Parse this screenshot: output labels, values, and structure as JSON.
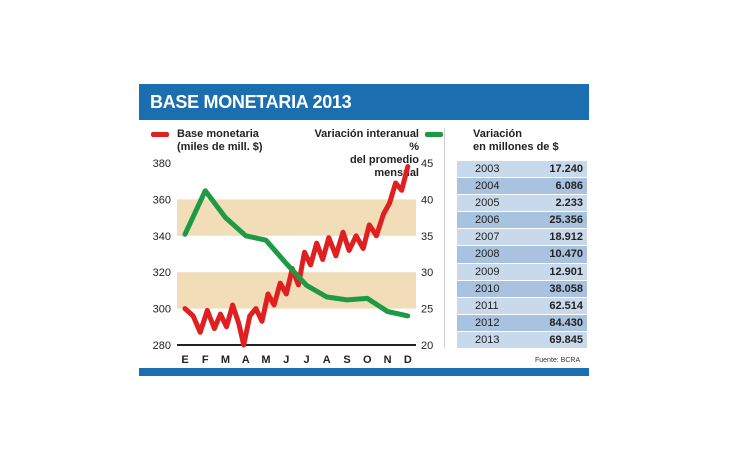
{
  "title": "BASE MONETARIA 2013",
  "source": "Fuente: BCRA",
  "legend": {
    "left": {
      "line1": "Base monetaria",
      "line2": "(miles de mill. $)",
      "color": "#e02020"
    },
    "right": {
      "line1": "Variación interanual %",
      "line2": "del promedio mensual",
      "color": "#1f9a44"
    }
  },
  "band_color": "#f1deb9",
  "chart_data": {
    "type": "line",
    "x_tick_labels": [
      "E",
      "F",
      "M",
      "A",
      "M",
      "J",
      "J",
      "A",
      "S",
      "O",
      "N",
      "D"
    ],
    "left_axis": {
      "ylim": [
        280,
        380
      ],
      "ticks": [
        280,
        300,
        320,
        340,
        360,
        380
      ]
    },
    "right_axis": {
      "ylim": [
        20,
        45
      ],
      "ticks": [
        20,
        25,
        30,
        35,
        40,
        45
      ]
    },
    "series": [
      {
        "name": "Base monetaria",
        "axis": "left",
        "color": "#e02020",
        "x": [
          0,
          0.4,
          0.75,
          1.1,
          1.45,
          1.75,
          2.05,
          2.35,
          2.65,
          2.9,
          3.2,
          3.5,
          3.8,
          4.1,
          4.4,
          4.7,
          5.0,
          5.3,
          5.6,
          5.9,
          6.2,
          6.5,
          6.8,
          7.1,
          7.45,
          7.8,
          8.1,
          8.45,
          8.8,
          9.1,
          9.45,
          9.8,
          10.1,
          10.4,
          10.7,
          11.0
        ],
        "values": [
          300,
          296,
          287,
          299,
          289,
          297,
          290,
          302,
          292,
          280,
          296,
          300,
          293,
          308,
          302,
          314,
          308,
          322,
          313,
          331,
          324,
          336,
          327,
          339,
          329,
          342,
          332,
          340,
          333,
          346,
          340,
          352,
          358,
          369,
          365,
          378
        ]
      },
      {
        "name": "Variación interanual %",
        "axis": "right",
        "color": "#1f9a44",
        "x": [
          0,
          1,
          2,
          3,
          4,
          5,
          6,
          7,
          8,
          9,
          10,
          11
        ],
        "values": [
          35.2,
          41.2,
          37.5,
          35.0,
          34.4,
          31.2,
          28.2,
          26.6,
          26.2,
          26.4,
          24.6,
          24.0
        ]
      }
    ],
    "grid": false,
    "legend_position": "top"
  },
  "table": {
    "header_line1": "Variación",
    "header_line2": "en millones de $",
    "rows": [
      {
        "year": "2003",
        "value": "17.240"
      },
      {
        "year": "2004",
        "value": "6.086"
      },
      {
        "year": "2005",
        "value": "2.233"
      },
      {
        "year": "2006",
        "value": "25.356"
      },
      {
        "year": "2007",
        "value": "18.912"
      },
      {
        "year": "2008",
        "value": "10.470"
      },
      {
        "year": "2009",
        "value": "12.901"
      },
      {
        "year": "2010",
        "value": "38.058"
      },
      {
        "year": "2011",
        "value": "62.514"
      },
      {
        "year": "2012",
        "value": "84.430"
      },
      {
        "year": "2013",
        "value": "69.845"
      }
    ]
  }
}
